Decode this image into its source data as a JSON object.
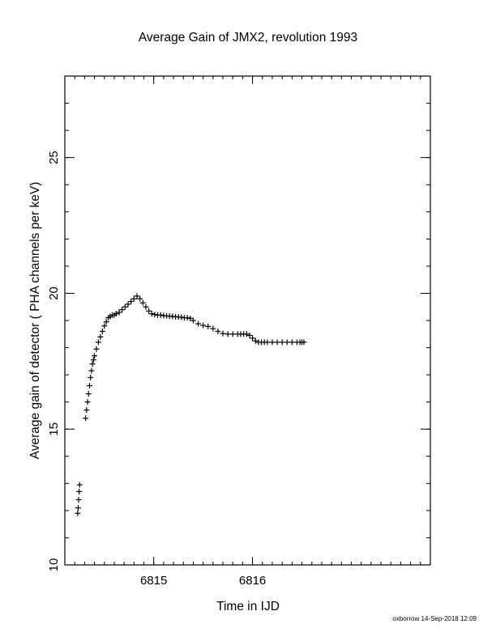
{
  "chart_data": {
    "type": "scatter",
    "title": "Average Gain of JMX2, revolution 1993",
    "xlabel": "Time in IJD",
    "ylabel": "Average gain of detector ( PHA channels per keV)",
    "footer": "oxborrow 14-Sep-2018 12:09",
    "marker": "+",
    "xlim": [
      6814.1,
      6817.8
    ],
    "ylim": [
      10,
      28
    ],
    "x_major_ticks": [
      6815,
      6816
    ],
    "x_minor_step": 0.1,
    "y_major_ticks": [
      10,
      15,
      20,
      25
    ],
    "y_minor_step": 1,
    "grid": false,
    "series": [
      {
        "x": [
          6814.23,
          6814.235,
          6814.24,
          6814.245,
          6814.25,
          6814.31,
          6814.32,
          6814.33,
          6814.34,
          6814.35,
          6814.36,
          6814.37,
          6814.38,
          6814.39,
          6814.4,
          6814.42,
          6814.44,
          6814.46,
          6814.48,
          6814.5,
          6814.52,
          6814.54,
          6814.56,
          6814.58,
          6814.6,
          6814.62,
          6814.65,
          6814.68,
          6814.71,
          6814.74,
          6814.77,
          6814.8,
          6814.83,
          6814.86,
          6814.89,
          6814.92,
          6814.95,
          6814.98,
          6815.01,
          6815.04,
          6815.07,
          6815.1,
          6815.13,
          6815.16,
          6815.19,
          6815.22,
          6815.25,
          6815.28,
          6815.31,
          6815.34,
          6815.37,
          6815.4,
          6815.45,
          6815.5,
          6815.55,
          6815.6,
          6815.65,
          6815.7,
          6815.75,
          6815.8,
          6815.85,
          6815.88,
          6815.91,
          6815.94,
          6815.97,
          6816.0,
          6816.03,
          6816.06,
          6816.09,
          6816.12,
          6816.15,
          6816.2,
          6816.25,
          6816.3,
          6816.35,
          6816.4,
          6816.45,
          6816.48,
          6816.5,
          6816.52
        ],
        "y": [
          11.9,
          12.1,
          12.4,
          12.7,
          12.95,
          15.4,
          15.7,
          16.0,
          16.3,
          16.6,
          16.9,
          17.15,
          17.4,
          17.55,
          17.7,
          17.95,
          18.2,
          18.4,
          18.6,
          18.8,
          18.95,
          19.1,
          19.15,
          19.2,
          19.2,
          19.25,
          19.3,
          19.4,
          19.5,
          19.6,
          19.7,
          19.8,
          19.9,
          19.8,
          19.65,
          19.5,
          19.35,
          19.25,
          19.22,
          19.2,
          19.2,
          19.18,
          19.17,
          19.16,
          19.15,
          19.14,
          19.13,
          19.12,
          19.1,
          19.1,
          19.08,
          19.0,
          18.88,
          18.82,
          18.78,
          18.7,
          18.6,
          18.52,
          18.5,
          18.5,
          18.5,
          18.5,
          18.5,
          18.5,
          18.45,
          18.35,
          18.25,
          18.2,
          18.2,
          18.2,
          18.2,
          18.2,
          18.2,
          18.2,
          18.2,
          18.2,
          18.2,
          18.2,
          18.2,
          18.2
        ]
      }
    ]
  }
}
